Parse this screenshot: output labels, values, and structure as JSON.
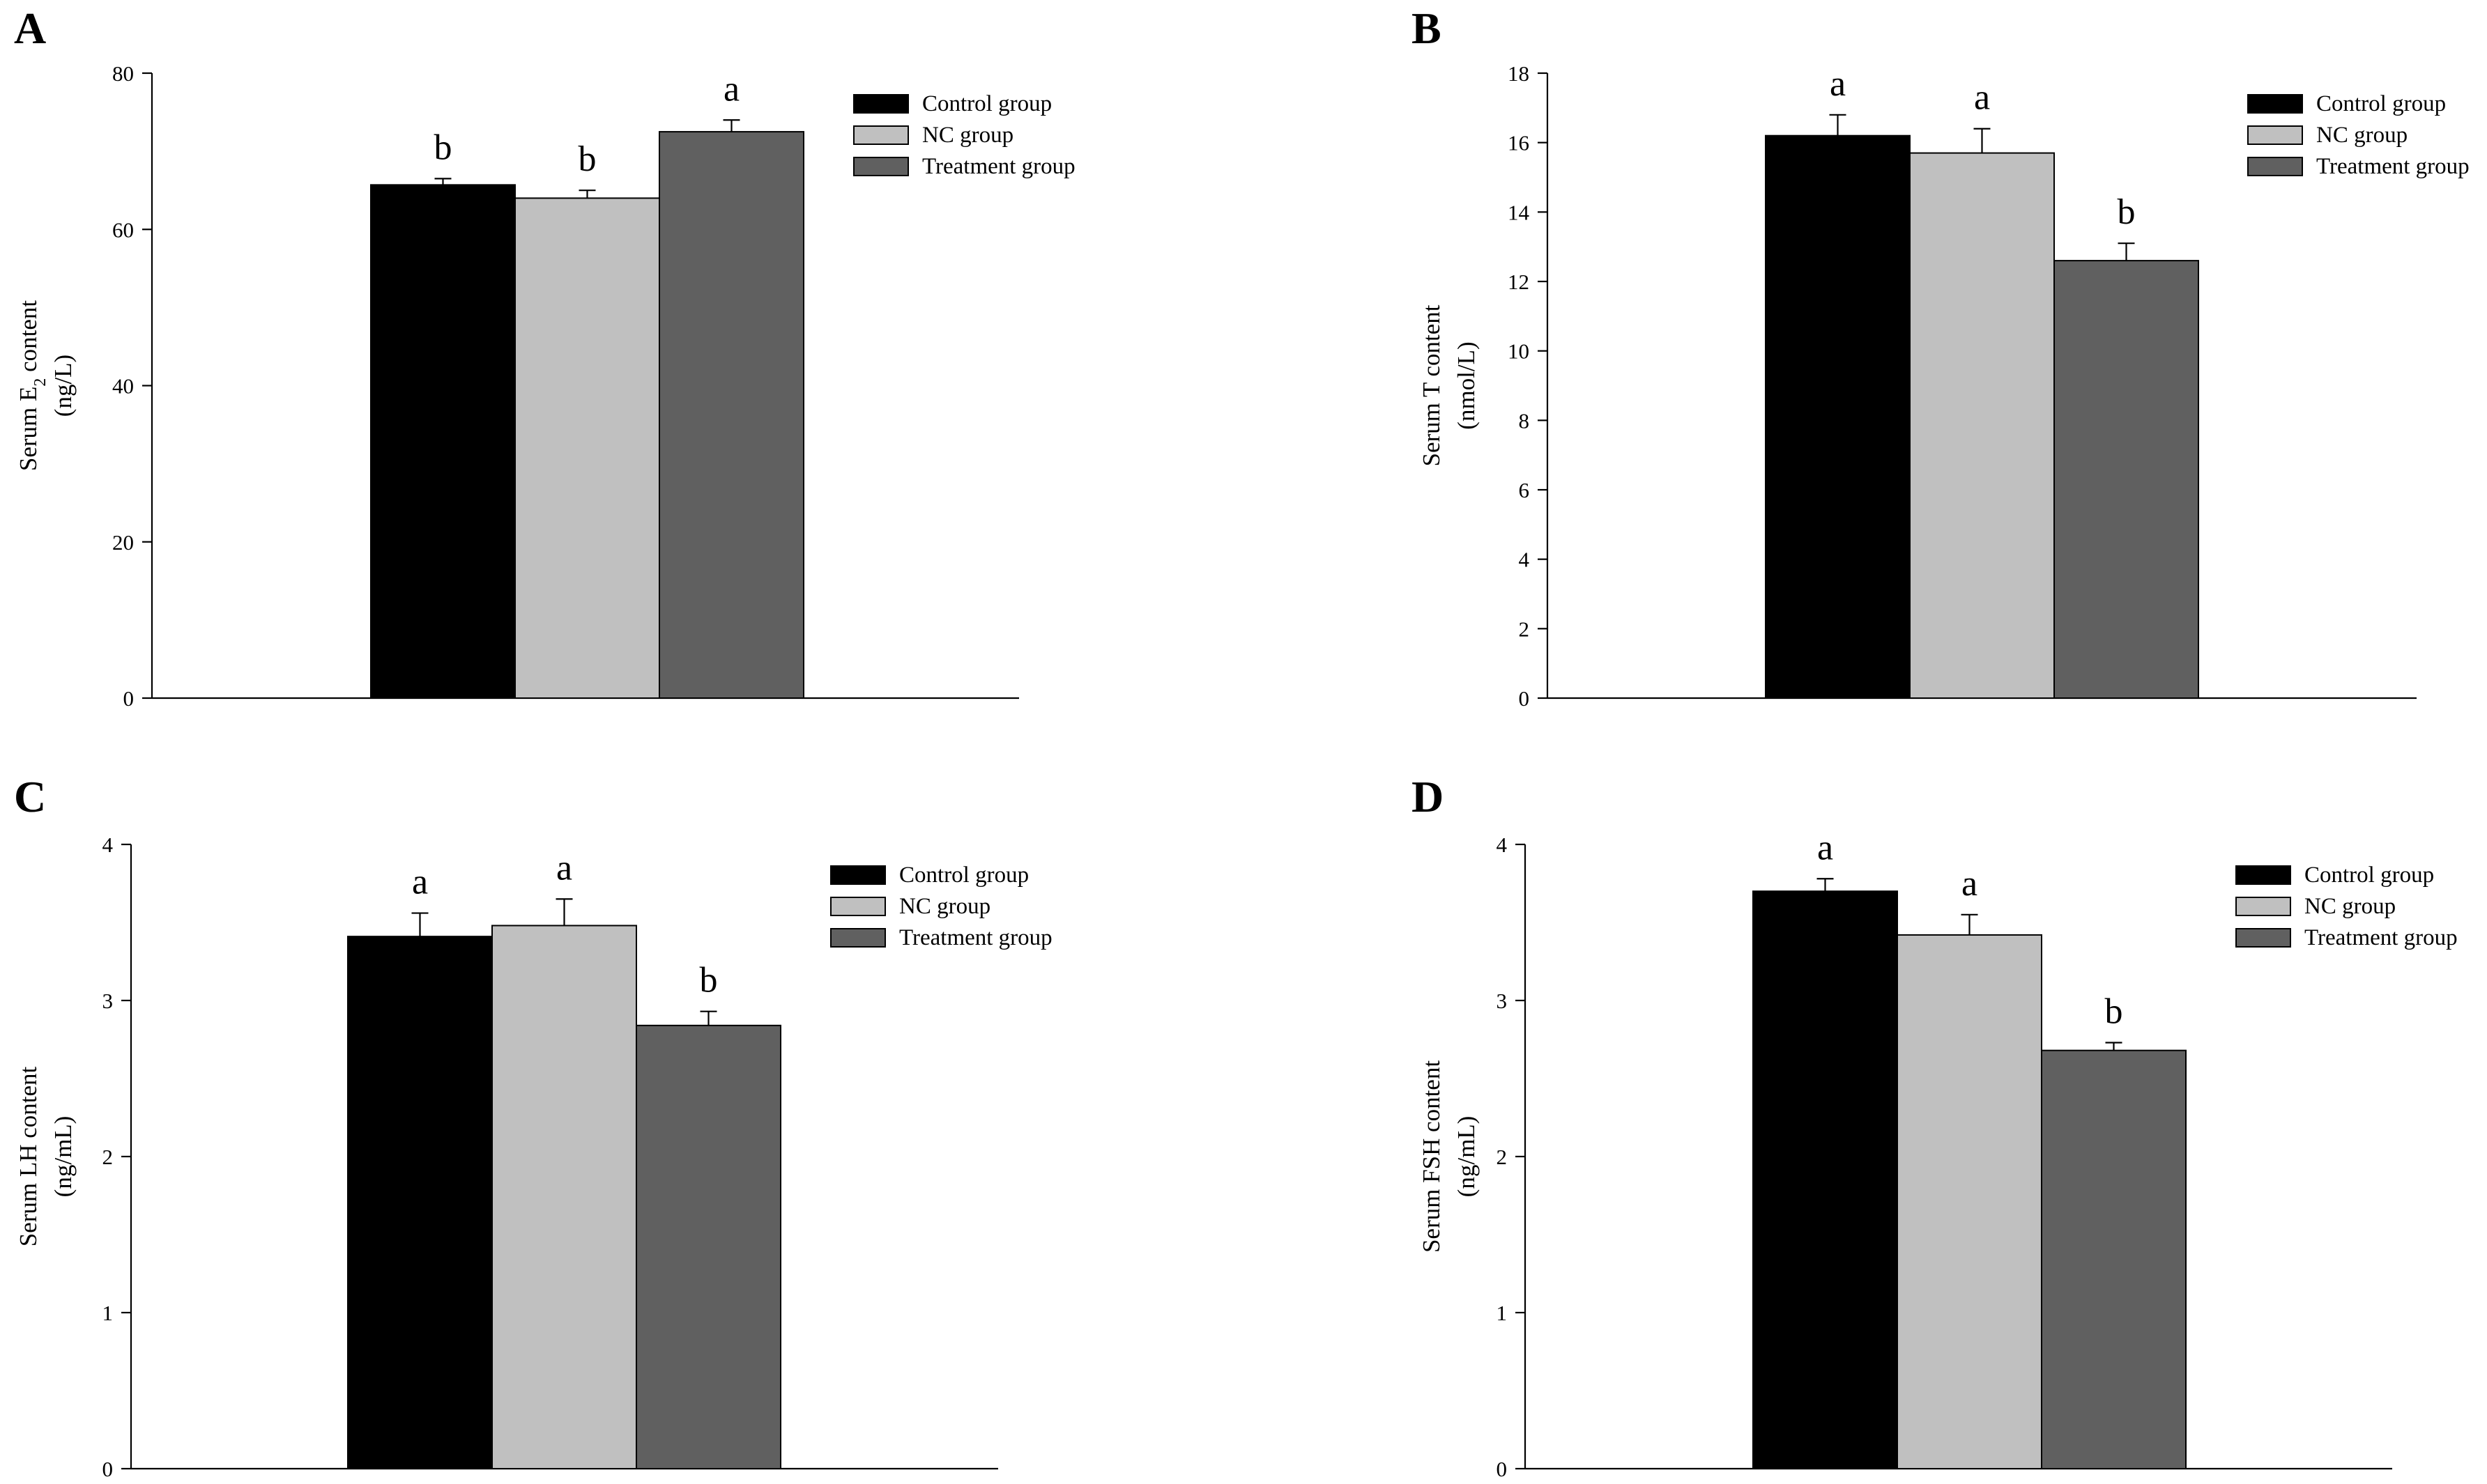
{
  "colors": {
    "control": "#000000",
    "nc": "#c0c0c0",
    "treatment": "#606060"
  },
  "chart_data": [
    {
      "panel": "A",
      "type": "bar",
      "ylabel_line1_pre": "Serum E",
      "ylabel_line1_sub": "2",
      "ylabel_line1_post": " content",
      "ylabel_line2": "(ng/L)",
      "ylim": [
        0,
        80
      ],
      "yticks": [
        0,
        20,
        40,
        60,
        80
      ],
      "series": [
        {
          "name": "Control group",
          "value": 65.7,
          "error": 0.8,
          "sig": "b"
        },
        {
          "name": "NC group",
          "value": 64.0,
          "error": 1.0,
          "sig": "b"
        },
        {
          "name": "Treatment group",
          "value": 72.5,
          "error": 1.5,
          "sig": "a"
        }
      ]
    },
    {
      "panel": "B",
      "type": "bar",
      "ylabel_line1_pre": "Serum T content",
      "ylabel_line1_sub": "",
      "ylabel_line1_post": "",
      "ylabel_line2": "(nmol/L)",
      "ylim": [
        0,
        18
      ],
      "yticks": [
        0,
        2,
        4,
        6,
        8,
        10,
        12,
        14,
        16,
        18
      ],
      "series": [
        {
          "name": "Control group",
          "value": 16.2,
          "error": 0.6,
          "sig": "a"
        },
        {
          "name": "NC group",
          "value": 15.7,
          "error": 0.7,
          "sig": "a"
        },
        {
          "name": "Treatment group",
          "value": 12.6,
          "error": 0.5,
          "sig": "b"
        }
      ]
    },
    {
      "panel": "C",
      "type": "bar",
      "ylabel_line1_pre": "Serum LH content",
      "ylabel_line1_sub": "",
      "ylabel_line1_post": "",
      "ylabel_line2": "(ng/mL)",
      "ylim": [
        0,
        4
      ],
      "yticks": [
        0,
        1,
        2,
        3,
        4
      ],
      "series": [
        {
          "name": "Control group",
          "value": 3.41,
          "error": 0.15,
          "sig": "a"
        },
        {
          "name": "NC group",
          "value": 3.48,
          "error": 0.17,
          "sig": "a"
        },
        {
          "name": "Treatment group",
          "value": 2.84,
          "error": 0.09,
          "sig": "b"
        }
      ]
    },
    {
      "panel": "D",
      "type": "bar",
      "ylabel_line1_pre": "Serum FSH content",
      "ylabel_line1_sub": "",
      "ylabel_line1_post": "",
      "ylabel_line2": "(ng/mL)",
      "ylim": [
        0,
        4
      ],
      "yticks": [
        0,
        1,
        2,
        3,
        4
      ],
      "series": [
        {
          "name": "Control group",
          "value": 3.7,
          "error": 0.08,
          "sig": "a"
        },
        {
          "name": "NC group",
          "value": 3.42,
          "error": 0.13,
          "sig": "a"
        },
        {
          "name": "Treatment group",
          "value": 2.68,
          "error": 0.05,
          "sig": "b"
        }
      ]
    }
  ]
}
